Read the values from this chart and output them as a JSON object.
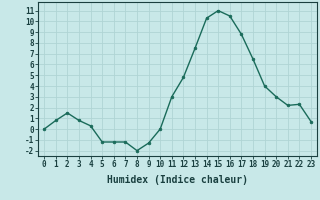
{
  "x": [
    0,
    1,
    2,
    3,
    4,
    5,
    6,
    7,
    8,
    9,
    10,
    11,
    12,
    13,
    14,
    15,
    16,
    17,
    18,
    19,
    20,
    21,
    22,
    23
  ],
  "y": [
    0,
    0.8,
    1.5,
    0.8,
    0.3,
    -1.2,
    -1.2,
    -1.2,
    -2.0,
    -1.3,
    0.0,
    3.0,
    4.8,
    7.5,
    10.3,
    11.0,
    10.5,
    8.8,
    6.5,
    4.0,
    3.0,
    2.2,
    2.3,
    0.7
  ],
  "line_color": "#1a6b5a",
  "marker": "o",
  "marker_size": 2.0,
  "bg_color": "#c8e8e8",
  "grid_color": "#b0d4d4",
  "xlabel": "Humidex (Indice chaleur)",
  "ylim": [
    -2.5,
    11.8
  ],
  "xlim": [
    -0.5,
    23.5
  ],
  "yticks": [
    -2,
    -1,
    0,
    1,
    2,
    3,
    4,
    5,
    6,
    7,
    8,
    9,
    10,
    11
  ],
  "xticks": [
    0,
    1,
    2,
    3,
    4,
    5,
    6,
    7,
    8,
    9,
    10,
    11,
    12,
    13,
    14,
    15,
    16,
    17,
    18,
    19,
    20,
    21,
    22,
    23
  ],
  "tick_label_fontsize": 5.5,
  "xlabel_fontsize": 7.0,
  "label_color": "#1a4040",
  "linewidth": 1.0
}
